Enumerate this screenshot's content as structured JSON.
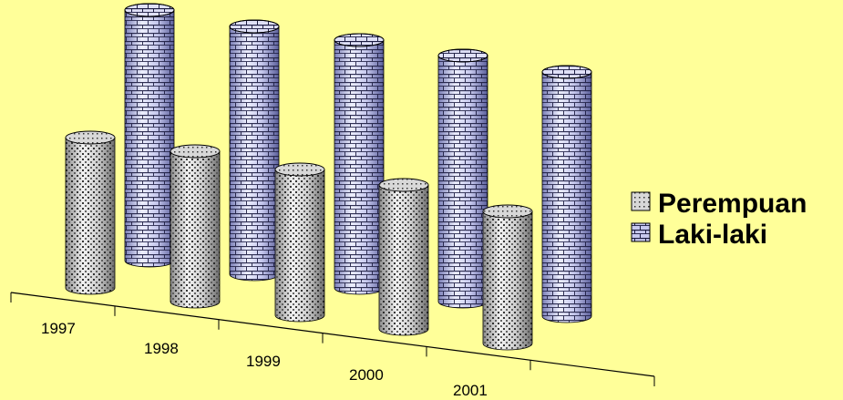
{
  "chart_data": {
    "type": "bar",
    "style": "3d-cylinder",
    "categories": [
      "1997",
      "1998",
      "1999",
      "2000",
      "2001"
    ],
    "series": [
      {
        "name": "Perempuan",
        "values": [
          165,
          165,
          160,
          158,
          145
        ],
        "pattern": "dots"
      },
      {
        "name": "Laki-laki",
        "values": [
          275,
          272,
          272,
          270,
          268
        ],
        "pattern": "bricks"
      }
    ],
    "xlabel": "",
    "ylabel": "",
    "legend_position": "right",
    "grid": false,
    "background": "#ffff99",
    "colors": {
      "perempuan": "#cfcfcf",
      "laki_laki": "#c7c9ee",
      "outline": "#000000"
    }
  }
}
